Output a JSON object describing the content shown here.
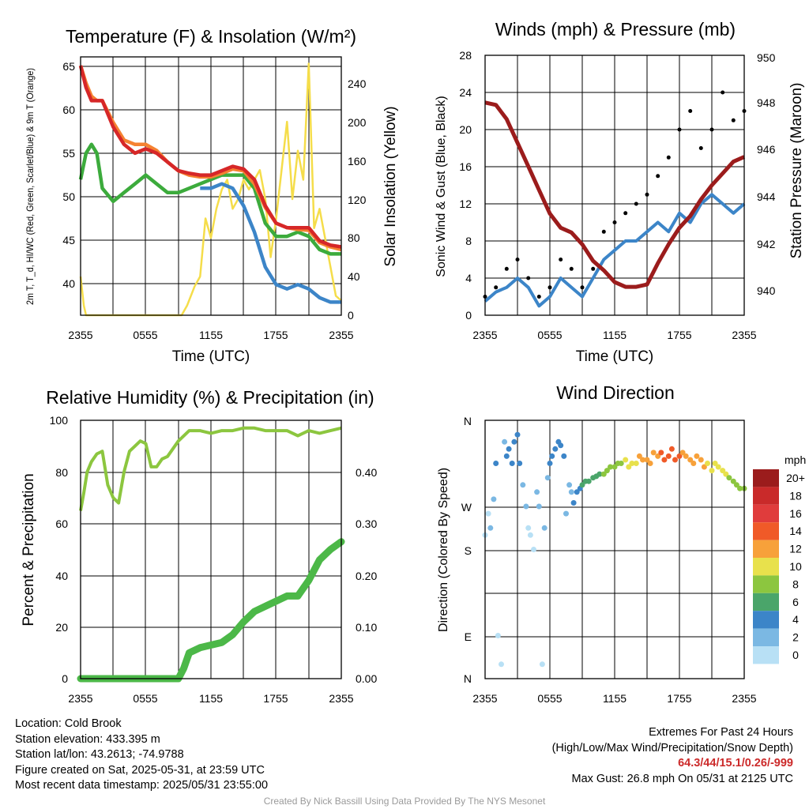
{
  "chart_data": [
    {
      "type": "line",
      "title": "Temperature (F) & Insolation (W/m²)",
      "xlabel": "Time (UTC)",
      "ylabel_left": "2m T, T_d, HI/WC (Red, Green, Scarlet/Blue) & 9m T (Orange)",
      "ylabel_right": "Solar Insolation (Yellow)",
      "x_ticks": [
        "2355",
        "0555",
        "1155",
        "1755",
        "2355"
      ],
      "y_left_ticks": [
        40,
        45,
        50,
        55,
        60,
        65
      ],
      "y_right_ticks": [
        0,
        40,
        80,
        120,
        160,
        200,
        240
      ],
      "ylim_left": [
        36.5,
        66
      ],
      "ylim_right": [
        0,
        267
      ],
      "grid": true,
      "series": [
        {
          "name": "2m T",
          "color": "#d62728",
          "axis": "left",
          "x": [
            0,
            0.5,
            1,
            1.5,
            2,
            3,
            4,
            5,
            6,
            7,
            8,
            9,
            10,
            11,
            12,
            13,
            14,
            15,
            16,
            17,
            18,
            19,
            20,
            21,
            22,
            23,
            24
          ],
          "y": [
            65,
            62.5,
            61,
            61,
            61,
            58,
            56,
            55,
            55.5,
            55,
            54,
            53,
            52.7,
            52.5,
            52.5,
            53,
            53.5,
            53.2,
            52,
            49,
            47,
            46.5,
            46.5,
            46.5,
            45,
            44.5,
            44.3
          ]
        },
        {
          "name": "9m T",
          "color": "#f58231",
          "axis": "left",
          "x": [
            0,
            0.5,
            1,
            1.5,
            2,
            3,
            4,
            5,
            6,
            7,
            8,
            9,
            10,
            11,
            12,
            13,
            14,
            15,
            16,
            17,
            18,
            19,
            20,
            21,
            22,
            23,
            24
          ],
          "y": [
            65,
            63,
            61.5,
            61,
            61,
            58.5,
            56.5,
            56,
            56,
            55.3,
            54,
            53,
            52.5,
            52.3,
            52.3,
            52.7,
            53.2,
            53,
            51.5,
            48.8,
            47,
            46.5,
            46.3,
            46.2,
            44.8,
            44.3,
            44
          ]
        },
        {
          "name": "T_d",
          "color": "#3cab3c",
          "axis": "left",
          "x": [
            0,
            0.5,
            1,
            1.5,
            2,
            3,
            4,
            5,
            6,
            7,
            8,
            9,
            10,
            11,
            12,
            13,
            14,
            15,
            16,
            17,
            18,
            19,
            20,
            21,
            22,
            23,
            24
          ],
          "y": [
            52,
            55,
            56,
            55,
            51,
            49.5,
            50.5,
            51.5,
            52.5,
            51.5,
            50.5,
            50.5,
            51,
            51.5,
            52,
            52.5,
            52.5,
            52.5,
            51,
            47,
            45.5,
            45.5,
            46,
            45.5,
            44,
            43.5,
            43.5
          ]
        },
        {
          "name": "HI/WC",
          "color": "#3c85c8",
          "axis": "left",
          "x": [
            11,
            12,
            13,
            14,
            15,
            16,
            17,
            18,
            19,
            20,
            21,
            22,
            23,
            24
          ],
          "y": [
            51,
            51,
            51.5,
            51,
            49,
            46,
            42,
            40,
            39.5,
            40,
            39.5,
            38.5,
            38,
            38
          ]
        },
        {
          "name": "Solar Insolation",
          "color": "#f5dd4a",
          "axis": "right",
          "x": [
            0,
            0.3,
            0.5,
            2,
            4,
            6,
            8,
            9.3,
            9.8,
            10.5,
            11,
            11.5,
            12,
            12.5,
            13,
            13.5,
            14,
            14.5,
            15,
            15.5,
            16,
            16.5,
            17,
            17.5,
            18,
            18.5,
            19,
            19.5,
            20,
            20.5,
            21,
            21.5,
            22,
            22.5,
            23,
            23.5,
            24
          ],
          "y": [
            40,
            10,
            0,
            0,
            0,
            0,
            0,
            0,
            10,
            30,
            40,
            100,
            80,
            110,
            130,
            140,
            110,
            120,
            140,
            130,
            140,
            150,
            120,
            60,
            100,
            150,
            200,
            120,
            170,
            140,
            260,
            90,
            110,
            80,
            50,
            20,
            15
          ]
        }
      ]
    },
    {
      "type": "line",
      "title": "Winds (mph) & Pressure (mb)",
      "xlabel": "Time (UTC)",
      "ylabel_left": "Sonic Wind & Gust (Blue, Black)",
      "ylabel_right": "Station Pressure (Maroon)",
      "x_ticks": [
        "2355",
        "0555",
        "1155",
        "1755",
        "2355"
      ],
      "y_left_ticks": [
        0,
        4,
        8,
        12,
        16,
        20,
        24,
        28
      ],
      "y_right_ticks": [
        940,
        942,
        944,
        946,
        948,
        950
      ],
      "ylim_left": [
        0,
        28
      ],
      "ylim_right": [
        939.3,
        950.3
      ],
      "grid": true,
      "series": [
        {
          "name": "Sonic Wind",
          "color": "#3c85c8",
          "axis": "left",
          "x": [
            0,
            1,
            2,
            3,
            4,
            5,
            6,
            7,
            8,
            9,
            10,
            11,
            12,
            13,
            14,
            15,
            16,
            17,
            18,
            19,
            20,
            21,
            22,
            23,
            24
          ],
          "y": [
            1.5,
            2.5,
            3,
            4,
            3,
            1,
            2,
            4,
            3,
            2,
            4,
            6,
            7,
            8,
            8,
            9,
            10,
            9,
            11,
            10,
            12,
            13,
            12,
            11,
            12
          ]
        },
        {
          "name": "Gust",
          "color": "#000000",
          "axis": "left",
          "marker": "dot",
          "x": [
            0,
            1,
            2,
            3,
            4,
            5,
            6,
            7,
            8,
            9,
            10,
            11,
            12,
            13,
            14,
            15,
            16,
            17,
            18,
            19,
            20,
            21,
            22,
            23,
            24
          ],
          "y": [
            2,
            3,
            5,
            6,
            4,
            2,
            3,
            6,
            5,
            3,
            5,
            9,
            10,
            11,
            12,
            13,
            15,
            17,
            20,
            22,
            18,
            20,
            24,
            21,
            22
          ]
        },
        {
          "name": "Station Pressure",
          "color": "#9b1c1c",
          "axis": "right",
          "x": [
            0,
            1,
            2,
            3,
            4,
            5,
            6,
            7,
            8,
            9,
            10,
            11,
            12,
            13,
            14,
            15,
            16,
            17,
            18,
            19,
            20,
            21,
            22,
            23,
            24
          ],
          "y": [
            948.3,
            948.2,
            947.6,
            946.6,
            945.6,
            944.6,
            943.6,
            943,
            942.8,
            942.3,
            941.6,
            941.2,
            940.7,
            940.5,
            940.5,
            940.6,
            941.5,
            942.3,
            943,
            943.5,
            944.2,
            944.8,
            945.3,
            945.8,
            946
          ]
        }
      ]
    },
    {
      "type": "line",
      "title": "Relative Humidity (%) & Precipitation (in)",
      "ylabel_left": "Percent & Precipitation",
      "x_ticks": [
        "2355",
        "0555",
        "1155",
        "1755",
        "2355"
      ],
      "y_left_ticks": [
        0,
        20,
        40,
        60,
        80,
        100
      ],
      "y_right_ticks": [
        "0.00",
        "0.10",
        "0.20",
        "0.30",
        "0.40"
      ],
      "ylim_left": [
        0,
        100
      ],
      "ylim_right": [
        0,
        0.5
      ],
      "grid": true,
      "series": [
        {
          "name": "Relative Humidity",
          "color": "#8cc63f",
          "axis": "left",
          "x": [
            0,
            0.3,
            0.6,
            1,
            1.5,
            2,
            2.5,
            3,
            3.5,
            4,
            4.5,
            5,
            5.5,
            6,
            6.5,
            7,
            7.5,
            8,
            9,
            10,
            11,
            12,
            13,
            14,
            15,
            16,
            17,
            18,
            19,
            20,
            21,
            22,
            23,
            24
          ],
          "y": [
            65,
            72,
            80,
            84,
            87,
            88,
            75,
            70,
            68,
            80,
            88,
            90,
            92,
            91,
            82,
            82,
            85,
            86,
            92,
            96,
            96,
            95,
            96,
            96,
            97,
            97,
            96,
            96,
            96,
            94,
            96,
            95,
            96,
            97
          ]
        },
        {
          "name": "Precipitation",
          "color": "#4cb848",
          "axis": "right",
          "x": [
            0,
            1,
            2,
            3,
            4,
            5,
            6,
            7,
            8,
            9,
            9.5,
            10,
            11,
            12,
            13,
            14,
            15,
            16,
            17,
            18,
            19,
            20,
            21,
            22,
            23,
            24
          ],
          "y": [
            0,
            0,
            0,
            0,
            0,
            0,
            0,
            0,
            0,
            0,
            0.02,
            0.05,
            0.06,
            0.065,
            0.07,
            0.085,
            0.11,
            0.13,
            0.14,
            0.15,
            0.16,
            0.16,
            0.19,
            0.23,
            0.25,
            0.265
          ]
        }
      ]
    },
    {
      "type": "scatter",
      "title": "Wind Direction",
      "ylabel": "Direction (Colored By Speed)",
      "x_ticks": [
        "2355",
        "0555",
        "1155",
        "1755",
        "2355"
      ],
      "y_ticks": [
        "N",
        "E",
        "S",
        "W",
        "N"
      ],
      "ylim": [
        0,
        360
      ],
      "grid": true,
      "legend_title": "mph",
      "legend_labels": [
        "20+",
        "18",
        "16",
        "14",
        "12",
        "10",
        "8",
        "6",
        "4",
        "2",
        "0"
      ],
      "legend_colors": [
        "#9b1c1c",
        "#c92a2a",
        "#e03c3c",
        "#f05a28",
        "#f7a13a",
        "#e8e14c",
        "#8cc63f",
        "#4aa56a",
        "#3c85c8",
        "#7bb8e3",
        "#b8e0f5"
      ],
      "speed_bins": [
        20,
        18,
        16,
        14,
        12,
        10,
        8,
        6,
        4,
        2,
        0
      ],
      "points": {
        "x": [
          0,
          0.3,
          0.5,
          0.8,
          1,
          1.2,
          1.5,
          1.8,
          2,
          2.2,
          2.5,
          2.7,
          3,
          3.2,
          3.5,
          3.8,
          4,
          4.2,
          4.5,
          4.8,
          5,
          5.3,
          5.5,
          5.8,
          6,
          6.2,
          6.5,
          6.8,
          7,
          7.3,
          7.5,
          7.8,
          8,
          8.2,
          8.5,
          8.8,
          9,
          9.3,
          9.6,
          10,
          10.3,
          10.6,
          11,
          11.3,
          11.6,
          12,
          12.3,
          12.6,
          13,
          13.3,
          13.6,
          14,
          14.3,
          14.6,
          15,
          15.3,
          15.6,
          16,
          16.3,
          16.6,
          17,
          17.3,
          17.6,
          18,
          18.3,
          18.6,
          19,
          19.3,
          19.6,
          20,
          20.3,
          20.6,
          21,
          21.3,
          21.6,
          22,
          22.3,
          22.6,
          23,
          23.3,
          23.6,
          24
        ],
        "y": [
          200,
          230,
          210,
          250,
          300,
          60,
          20,
          330,
          310,
          320,
          300,
          330,
          340,
          300,
          270,
          240,
          210,
          200,
          180,
          260,
          240,
          20,
          210,
          280,
          300,
          310,
          320,
          330,
          325,
          310,
          230,
          270,
          260,
          245,
          260,
          265,
          270,
          275,
          275,
          280,
          282,
          285,
          285,
          290,
          295,
          295,
          300,
          300,
          305,
          295,
          300,
          300,
          310,
          305,
          305,
          300,
          315,
          310,
          315,
          305,
          310,
          320,
          305,
          310,
          315,
          310,
          305,
          300,
          310,
          305,
          295,
          300,
          290,
          300,
          295,
          290,
          285,
          280,
          275,
          270,
          265,
          265
        ],
        "speed": [
          1,
          1,
          2,
          3,
          4,
          1,
          1,
          3,
          4,
          5,
          4,
          5,
          5,
          4,
          3,
          2,
          1,
          1,
          1,
          2,
          2,
          1,
          2,
          3,
          4,
          4,
          4,
          5,
          5,
          4,
          2,
          3,
          3,
          4,
          5,
          5,
          6,
          6,
          6,
          7,
          7,
          7,
          8,
          8,
          8,
          9,
          9,
          9,
          10,
          10,
          11,
          11,
          12,
          12,
          12,
          12,
          13,
          13,
          14,
          14,
          14,
          15,
          14,
          14,
          13,
          13,
          13,
          12,
          12,
          12,
          12,
          11,
          11,
          11,
          10,
          10,
          10,
          9,
          9,
          9,
          8,
          8
        ]
      }
    }
  ],
  "info_left": {
    "location": "Location: Cold Brook",
    "elevation": "Station elevation: 433.395 m",
    "latlon": "Station lat/lon: 43.2613; -74.9788",
    "created": "Figure created on Sat, 2025-05-31, at 23:59 UTC",
    "recent": "Most recent data timestamp: 2025/05/31 23:55:00"
  },
  "info_right": {
    "heading": "Extremes For Past 24 Hours",
    "subheading": "(High/Low/Max Wind/Precipitation/Snow Depth)",
    "values": "64.3/44/15.1/0.26/-999",
    "gust": "Max Gust: 26.8 mph On 05/31 at 2125 UTC"
  },
  "credit": "Created By Nick Bassill Using Data Provided By The NYS Mesonet"
}
